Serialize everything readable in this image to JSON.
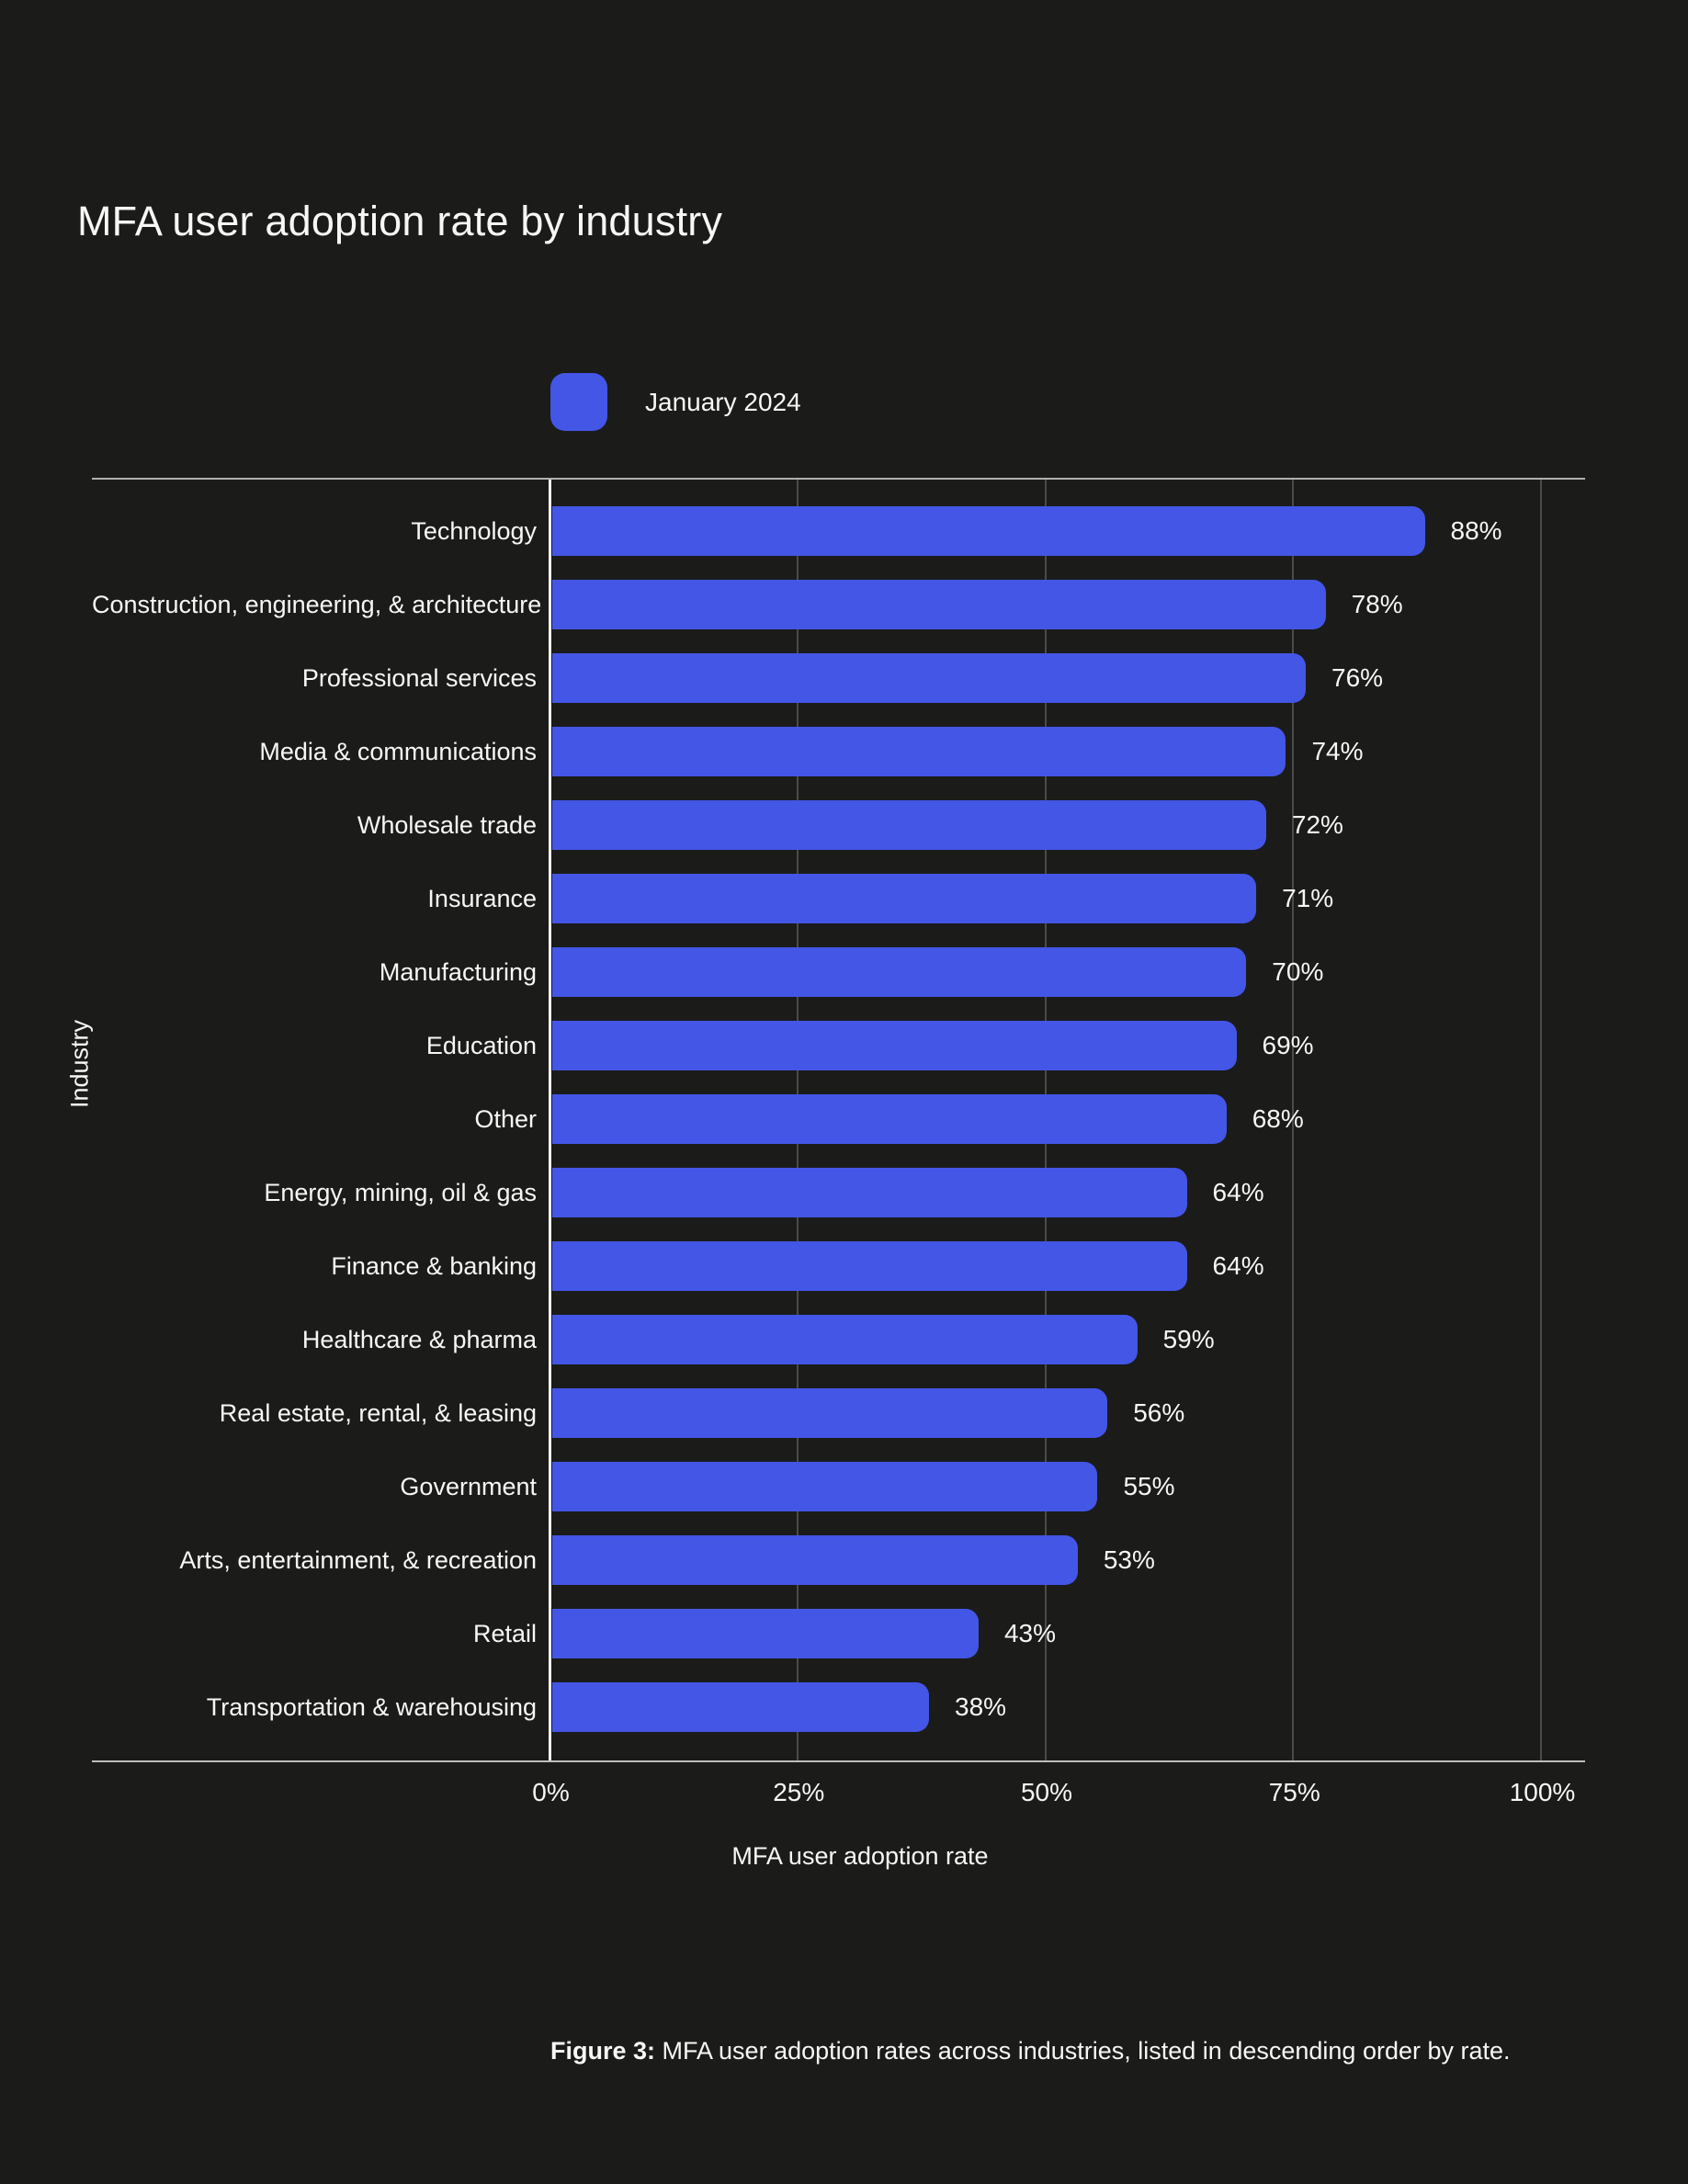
{
  "page": {
    "title": "MFA user adoption rate by industry",
    "caption": {
      "prefix": "Figure 3:",
      "text": "MFA user adoption rates across industries, listed in descending order by rate."
    }
  },
  "colors": {
    "background": "#1b1b1a",
    "accent": "#4356e6",
    "gridline": "#4b4b49",
    "axis_line": "#f6f6f4",
    "frame_line": "#b0b0ae",
    "text": "#f7f7f5"
  },
  "chart_data": {
    "type": "bar",
    "orientation": "horizontal",
    "title": "MFA user adoption rate by industry",
    "legend": [
      {
        "label": "January 2024",
        "color": "#4356e6"
      }
    ],
    "legend_position": "top",
    "categories": [
      "Technology",
      "Construction, engineering, & architecture",
      "Professional services",
      "Media & communications",
      "Wholesale trade",
      "Insurance",
      "Manufacturing",
      "Education",
      "Other",
      "Energy, mining, oil & gas",
      "Finance & banking",
      "Healthcare & pharma",
      "Real estate, rental, & leasing",
      "Government",
      "Arts, entertainment, & recreation",
      "Retail",
      "Transportation & warehousing"
    ],
    "values": [
      88,
      78,
      76,
      74,
      72,
      71,
      70,
      69,
      68,
      64,
      64,
      59,
      56,
      55,
      53,
      43,
      38
    ],
    "value_labels": [
      "88%",
      "78%",
      "76%",
      "74%",
      "72%",
      "71%",
      "70%",
      "69%",
      "68%",
      "64%",
      "64%",
      "59%",
      "56%",
      "55%",
      "53%",
      "43%",
      "38%"
    ],
    "xlabel": "MFA user adoption rate",
    "ylabel": "Industry",
    "x_ticks": [
      "0%",
      "25%",
      "50%",
      "75%",
      "100%"
    ],
    "xlim": [
      0,
      100
    ],
    "grid": "vertical"
  }
}
